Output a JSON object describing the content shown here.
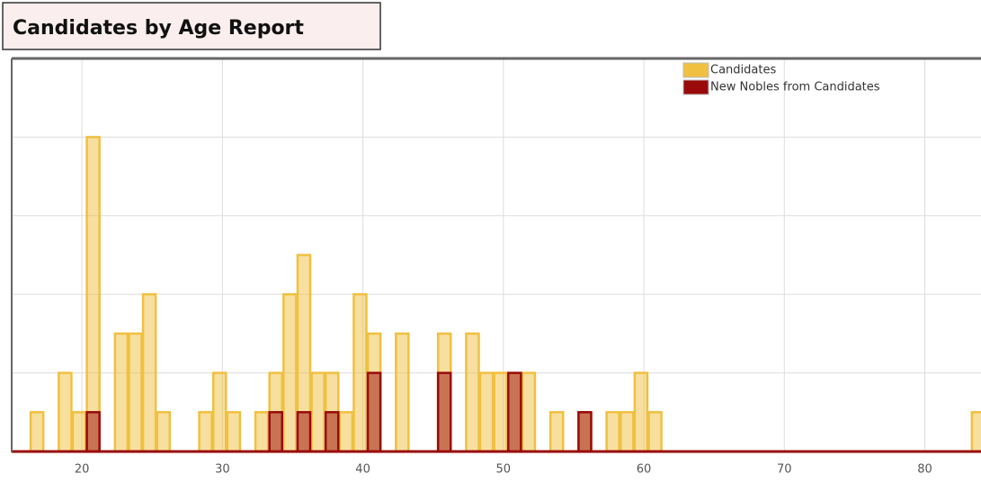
{
  "chart_data": {
    "type": "bar",
    "title": "Candidates by Age Report",
    "x": [
      16,
      17,
      18,
      19,
      20,
      21,
      22,
      23,
      24,
      25,
      26,
      27,
      28,
      29,
      30,
      31,
      32,
      33,
      34,
      35,
      36,
      37,
      38,
      39,
      40,
      41,
      42,
      43,
      44,
      45,
      46,
      47,
      48,
      49,
      50,
      51,
      52,
      53,
      54,
      55,
      56,
      57,
      58,
      59,
      60,
      61,
      62,
      63,
      64,
      65,
      66,
      67,
      68,
      69,
      70,
      71,
      72,
      73,
      74,
      75,
      76,
      77,
      78,
      79,
      80,
      81,
      82,
      83,
      84
    ],
    "series": [
      {
        "name": "Candidates",
        "color": "#f0c040",
        "values": [
          0,
          1,
          0,
          2,
          1,
          8,
          0,
          3,
          3,
          4,
          1,
          0,
          0,
          1,
          2,
          1,
          0,
          1,
          2,
          4,
          5,
          2,
          2,
          1,
          4,
          3,
          0,
          3,
          0,
          0,
          3,
          0,
          3,
          2,
          2,
          2,
          2,
          0,
          1,
          0,
          1,
          0,
          1,
          1,
          2,
          1,
          0,
          0,
          0,
          0,
          0,
          0,
          0,
          0,
          0,
          0,
          0,
          0,
          0,
          0,
          0,
          0,
          0,
          0,
          0,
          0,
          0,
          0,
          1
        ]
      },
      {
        "name": "New Nobles from Candidates",
        "color": "#9a0a0a",
        "values": [
          0,
          0,
          0,
          0,
          0,
          1,
          0,
          0,
          0,
          0,
          0,
          0,
          0,
          0,
          0,
          0,
          0,
          0,
          1,
          0,
          1,
          0,
          1,
          0,
          0,
          2,
          0,
          0,
          0,
          0,
          2,
          0,
          0,
          0,
          0,
          2,
          0,
          0,
          0,
          0,
          1,
          0,
          0,
          0,
          0,
          0,
          0,
          0,
          0,
          0,
          0,
          0,
          0,
          0,
          0,
          0,
          0,
          0,
          0,
          0,
          0,
          0,
          0,
          0,
          0,
          0,
          0,
          0,
          0
        ]
      }
    ],
    "xlim": [
      15,
      84
    ],
    "xticks": [
      20,
      30,
      40,
      50,
      60,
      70,
      80
    ],
    "ylim": [
      0,
      10
    ],
    "yticks": [
      0,
      2,
      4,
      6,
      8,
      10
    ],
    "grid": true,
    "legend": "upper right"
  }
}
